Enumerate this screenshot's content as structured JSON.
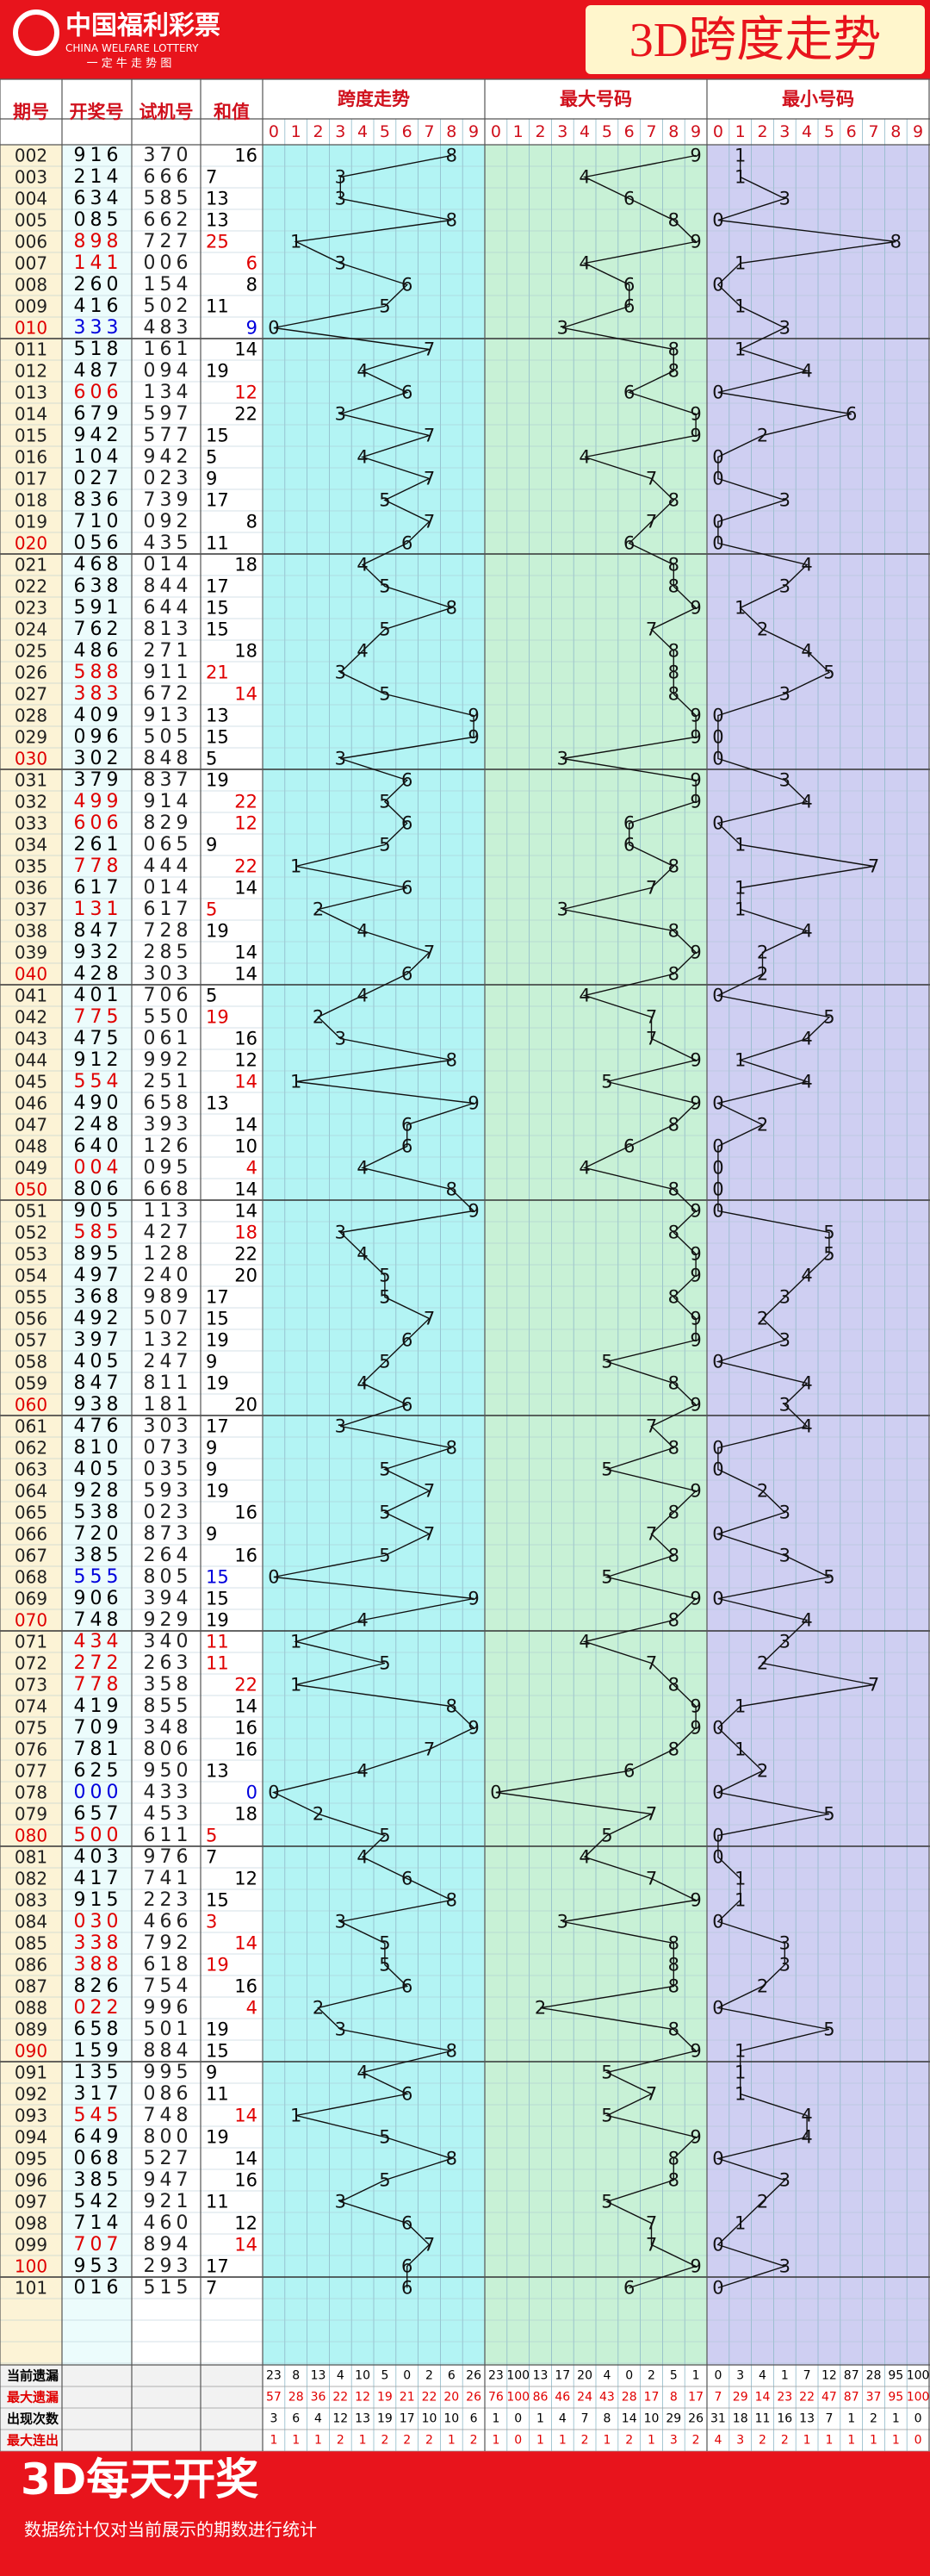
{
  "header": {
    "logo": "中国福利彩票",
    "logo_en": "CHINA WELFARE LOTTERY",
    "logo_sub": "一 定 牛 走 势 图",
    "title": "3D跨度走势"
  },
  "table": {
    "columns": [
      "期号",
      "开奖号",
      "试机号",
      "和值",
      "跨度走势",
      "最大号码",
      "最小号码"
    ],
    "digits": [
      0,
      1,
      2,
      3,
      4,
      5,
      6,
      7,
      8,
      9
    ],
    "rows": [
      [
        "002",
        "916",
        "370",
        16,
        8,
        9,
        1,
        "#000000",
        "right"
      ],
      [
        "003",
        "214",
        "666",
        7,
        3,
        4,
        1,
        "#000000",
        "left"
      ],
      [
        "004",
        "634",
        "585",
        13,
        3,
        6,
        3,
        "#000000",
        "left"
      ],
      [
        "005",
        "085",
        "662",
        13,
        8,
        8,
        0,
        "#000000",
        "left"
      ],
      [
        "006",
        "898",
        "727",
        25,
        1,
        9,
        8,
        "#e00000",
        "left"
      ],
      [
        "007",
        "141",
        "006",
        6,
        3,
        4,
        1,
        "#e00000",
        "right"
      ],
      [
        "008",
        "260",
        "154",
        8,
        6,
        6,
        0,
        "#000000",
        "right"
      ],
      [
        "009",
        "416",
        "502",
        11,
        5,
        6,
        1,
        "#000000",
        "left"
      ],
      [
        "010",
        "333",
        "483",
        9,
        0,
        3,
        3,
        "#0000dd",
        "right"
      ],
      [
        "011",
        "518",
        "161",
        14,
        7,
        8,
        1,
        "#000000",
        "right"
      ],
      [
        "012",
        "487",
        "094",
        19,
        4,
        8,
        4,
        "#000000",
        "left"
      ],
      [
        "013",
        "606",
        "134",
        12,
        6,
        6,
        0,
        "#e00000",
        "right"
      ],
      [
        "014",
        "679",
        "597",
        22,
        3,
        9,
        6,
        "#000000",
        "right"
      ],
      [
        "015",
        "942",
        "577",
        15,
        7,
        9,
        2,
        "#000000",
        "left"
      ],
      [
        "016",
        "104",
        "942",
        5,
        4,
        4,
        0,
        "#000000",
        "left"
      ],
      [
        "017",
        "027",
        "023",
        9,
        7,
        7,
        0,
        "#000000",
        "left"
      ],
      [
        "018",
        "836",
        "739",
        17,
        5,
        8,
        3,
        "#000000",
        "left"
      ],
      [
        "019",
        "710",
        "092",
        8,
        7,
        7,
        0,
        "#000000",
        "right"
      ],
      [
        "020",
        "056",
        "435",
        11,
        6,
        6,
        0,
        "#000000",
        "left"
      ],
      [
        "021",
        "468",
        "014",
        18,
        4,
        8,
        4,
        "#000000",
        "right"
      ],
      [
        "022",
        "638",
        "844",
        17,
        5,
        8,
        3,
        "#000000",
        "left"
      ],
      [
        "023",
        "591",
        "644",
        15,
        8,
        9,
        1,
        "#000000",
        "left"
      ],
      [
        "024",
        "762",
        "813",
        15,
        5,
        7,
        2,
        "#000000",
        "left"
      ],
      [
        "025",
        "486",
        "271",
        18,
        4,
        8,
        4,
        "#000000",
        "right"
      ],
      [
        "026",
        "588",
        "911",
        21,
        3,
        8,
        5,
        "#e00000",
        "left"
      ],
      [
        "027",
        "383",
        "672",
        14,
        5,
        8,
        3,
        "#e00000",
        "right"
      ],
      [
        "028",
        "409",
        "913",
        13,
        9,
        9,
        0,
        "#000000",
        "left"
      ],
      [
        "029",
        "096",
        "505",
        15,
        9,
        9,
        0,
        "#000000",
        "left"
      ],
      [
        "030",
        "302",
        "848",
        5,
        3,
        3,
        0,
        "#000000",
        "left"
      ],
      [
        "031",
        "379",
        "837",
        19,
        6,
        9,
        3,
        "#000000",
        "left"
      ],
      [
        "032",
        "499",
        "914",
        22,
        5,
        9,
        4,
        "#e00000",
        "right"
      ],
      [
        "033",
        "606",
        "829",
        12,
        6,
        6,
        0,
        "#e00000",
        "right"
      ],
      [
        "034",
        "261",
        "065",
        9,
        5,
        6,
        1,
        "#000000",
        "left"
      ],
      [
        "035",
        "778",
        "444",
        22,
        1,
        8,
        7,
        "#e00000",
        "right"
      ],
      [
        "036",
        "617",
        "014",
        14,
        6,
        7,
        1,
        "#000000",
        "right"
      ],
      [
        "037",
        "131",
        "617",
        5,
        2,
        3,
        1,
        "#e00000",
        "left"
      ],
      [
        "038",
        "847",
        "728",
        19,
        4,
        8,
        4,
        "#000000",
        "left"
      ],
      [
        "039",
        "932",
        "285",
        14,
        7,
        9,
        2,
        "#000000",
        "right"
      ],
      [
        "040",
        "428",
        "303",
        14,
        6,
        8,
        2,
        "#000000",
        "right"
      ],
      [
        "041",
        "401",
        "706",
        5,
        4,
        4,
        0,
        "#000000",
        "left"
      ],
      [
        "042",
        "775",
        "550",
        19,
        2,
        7,
        5,
        "#e00000",
        "left"
      ],
      [
        "043",
        "475",
        "061",
        16,
        3,
        7,
        4,
        "#000000",
        "right"
      ],
      [
        "044",
        "912",
        "992",
        12,
        8,
        9,
        1,
        "#000000",
        "right"
      ],
      [
        "045",
        "554",
        "251",
        14,
        1,
        5,
        4,
        "#e00000",
        "right"
      ],
      [
        "046",
        "490",
        "658",
        13,
        9,
        9,
        0,
        "#000000",
        "left"
      ],
      [
        "047",
        "248",
        "393",
        14,
        6,
        8,
        2,
        "#000000",
        "right"
      ],
      [
        "048",
        "640",
        "126",
        10,
        6,
        6,
        0,
        "#000000",
        "right"
      ],
      [
        "049",
        "004",
        "095",
        4,
        4,
        4,
        0,
        "#e00000",
        "right"
      ],
      [
        "050",
        "806",
        "668",
        14,
        8,
        8,
        0,
        "#000000",
        "right"
      ],
      [
        "051",
        "905",
        "113",
        14,
        9,
        9,
        0,
        "#000000",
        "right"
      ],
      [
        "052",
        "585",
        "427",
        18,
        3,
        8,
        5,
        "#e00000",
        "right"
      ],
      [
        "053",
        "895",
        "128",
        22,
        4,
        9,
        5,
        "#000000",
        "right"
      ],
      [
        "054",
        "497",
        "240",
        20,
        5,
        9,
        4,
        "#000000",
        "right"
      ],
      [
        "055",
        "368",
        "989",
        17,
        5,
        8,
        3,
        "#000000",
        "left"
      ],
      [
        "056",
        "492",
        "507",
        15,
        7,
        9,
        2,
        "#000000",
        "left"
      ],
      [
        "057",
        "397",
        "132",
        19,
        6,
        9,
        3,
        "#000000",
        "left"
      ],
      [
        "058",
        "405",
        "247",
        9,
        5,
        5,
        0,
        "#000000",
        "left"
      ],
      [
        "059",
        "847",
        "811",
        19,
        4,
        8,
        4,
        "#000000",
        "left"
      ],
      [
        "060",
        "938",
        "181",
        20,
        6,
        9,
        3,
        "#000000",
        "right"
      ],
      [
        "061",
        "476",
        "303",
        17,
        3,
        7,
        4,
        "#000000",
        "left"
      ],
      [
        "062",
        "810",
        "073",
        9,
        8,
        8,
        0,
        "#000000",
        "left"
      ],
      [
        "063",
        "405",
        "035",
        9,
        5,
        5,
        0,
        "#000000",
        "left"
      ],
      [
        "064",
        "928",
        "593",
        19,
        7,
        9,
        2,
        "#000000",
        "left"
      ],
      [
        "065",
        "538",
        "023",
        16,
        5,
        8,
        3,
        "#000000",
        "right"
      ],
      [
        "066",
        "720",
        "873",
        9,
        7,
        7,
        0,
        "#000000",
        "left"
      ],
      [
        "067",
        "385",
        "264",
        16,
        5,
        8,
        3,
        "#000000",
        "right"
      ],
      [
        "068",
        "555",
        "805",
        15,
        0,
        5,
        5,
        "#0000dd",
        "left"
      ],
      [
        "069",
        "906",
        "394",
        15,
        9,
        9,
        0,
        "#000000",
        "left"
      ],
      [
        "070",
        "748",
        "929",
        19,
        4,
        8,
        4,
        "#000000",
        "left"
      ],
      [
        "071",
        "434",
        "340",
        11,
        1,
        4,
        3,
        "#e00000",
        "left"
      ],
      [
        "072",
        "272",
        "263",
        11,
        5,
        7,
        2,
        "#e00000",
        "left"
      ],
      [
        "073",
        "778",
        "358",
        22,
        1,
        8,
        7,
        "#e00000",
        "right"
      ],
      [
        "074",
        "419",
        "855",
        14,
        8,
        9,
        1,
        "#000000",
        "right"
      ],
      [
        "075",
        "709",
        "348",
        16,
        9,
        9,
        0,
        "#000000",
        "right"
      ],
      [
        "076",
        "781",
        "806",
        16,
        7,
        8,
        1,
        "#000000",
        "right"
      ],
      [
        "077",
        "625",
        "950",
        13,
        4,
        6,
        2,
        "#000000",
        "left"
      ],
      [
        "078",
        "000",
        "433",
        0,
        0,
        0,
        0,
        "#0000dd",
        "right"
      ],
      [
        "079",
        "657",
        "453",
        18,
        2,
        7,
        5,
        "#000000",
        "right"
      ],
      [
        "080",
        "500",
        "611",
        5,
        5,
        5,
        0,
        "#e00000",
        "left"
      ],
      [
        "081",
        "403",
        "976",
        7,
        4,
        4,
        0,
        "#000000",
        "left"
      ],
      [
        "082",
        "417",
        "741",
        12,
        6,
        7,
        1,
        "#000000",
        "right"
      ],
      [
        "083",
        "915",
        "223",
        15,
        8,
        9,
        1,
        "#000000",
        "left"
      ],
      [
        "084",
        "030",
        "466",
        3,
        3,
        3,
        0,
        "#e00000",
        "left"
      ],
      [
        "085",
        "338",
        "792",
        14,
        5,
        8,
        3,
        "#e00000",
        "right"
      ],
      [
        "086",
        "388",
        "618",
        19,
        5,
        8,
        3,
        "#e00000",
        "left"
      ],
      [
        "087",
        "826",
        "754",
        16,
        6,
        8,
        2,
        "#000000",
        "right"
      ],
      [
        "088",
        "022",
        "996",
        4,
        2,
        2,
        0,
        "#e00000",
        "right"
      ],
      [
        "089",
        "658",
        "501",
        19,
        3,
        8,
        5,
        "#000000",
        "left"
      ],
      [
        "090",
        "159",
        "884",
        15,
        8,
        9,
        1,
        "#000000",
        "left"
      ],
      [
        "091",
        "135",
        "995",
        9,
        4,
        5,
        1,
        "#000000",
        "left"
      ],
      [
        "092",
        "317",
        "086",
        11,
        6,
        7,
        1,
        "#000000",
        "left"
      ],
      [
        "093",
        "545",
        "748",
        14,
        1,
        5,
        4,
        "#e00000",
        "right"
      ],
      [
        "094",
        "649",
        "800",
        19,
        5,
        9,
        4,
        "#000000",
        "left"
      ],
      [
        "095",
        "068",
        "527",
        14,
        8,
        8,
        0,
        "#000000",
        "right"
      ],
      [
        "096",
        "385",
        "947",
        16,
        5,
        8,
        3,
        "#000000",
        "right"
      ],
      [
        "097",
        "542",
        "921",
        11,
        3,
        5,
        2,
        "#000000",
        "left"
      ],
      [
        "098",
        "714",
        "460",
        12,
        6,
        7,
        1,
        "#000000",
        "right"
      ],
      [
        "099",
        "707",
        "894",
        14,
        7,
        7,
        0,
        "#e00000",
        "right"
      ],
      [
        "100",
        "953",
        "293",
        17,
        6,
        9,
        3,
        "#000000",
        "left"
      ],
      [
        "101",
        "016",
        "515",
        7,
        6,
        6,
        0,
        "#000000",
        "left"
      ]
    ]
  },
  "stats": {
    "rows": [
      {
        "label": "当前遗漏",
        "color": "#000000",
        "values": [
          23,
          8,
          13,
          4,
          10,
          5,
          0,
          2,
          6,
          26,
          23,
          100,
          13,
          17,
          20,
          4,
          0,
          2,
          5,
          1,
          0,
          3,
          4,
          1,
          7,
          12,
          87,
          28,
          95,
          100
        ]
      },
      {
        "label": "最大遗漏",
        "color": "#e00000",
        "values": [
          57,
          28,
          36,
          22,
          12,
          19,
          21,
          22,
          20,
          26,
          76,
          100,
          86,
          46,
          24,
          43,
          28,
          17,
          8,
          17,
          7,
          29,
          14,
          23,
          22,
          47,
          87,
          37,
          95,
          100
        ]
      },
      {
        "label": "出现次数",
        "color": "#000000",
        "values": [
          3,
          6,
          4,
          12,
          13,
          19,
          17,
          10,
          10,
          6,
          1,
          0,
          1,
          4,
          7,
          8,
          14,
          10,
          29,
          26,
          31,
          18,
          11,
          16,
          13,
          7,
          1,
          2,
          1,
          0
        ]
      },
      {
        "label": "最大连出",
        "color": "#e00000",
        "values": [
          1,
          1,
          1,
          2,
          1,
          2,
          2,
          2,
          1,
          2,
          1,
          0,
          1,
          1,
          2,
          1,
          2,
          1,
          3,
          2,
          4,
          3,
          2,
          2,
          1,
          1,
          1,
          1,
          1,
          0
        ]
      }
    ]
  },
  "footer": {
    "title": "3D每天开奖",
    "note": "数据统计仅对当前展示的期数进行统计"
  }
}
